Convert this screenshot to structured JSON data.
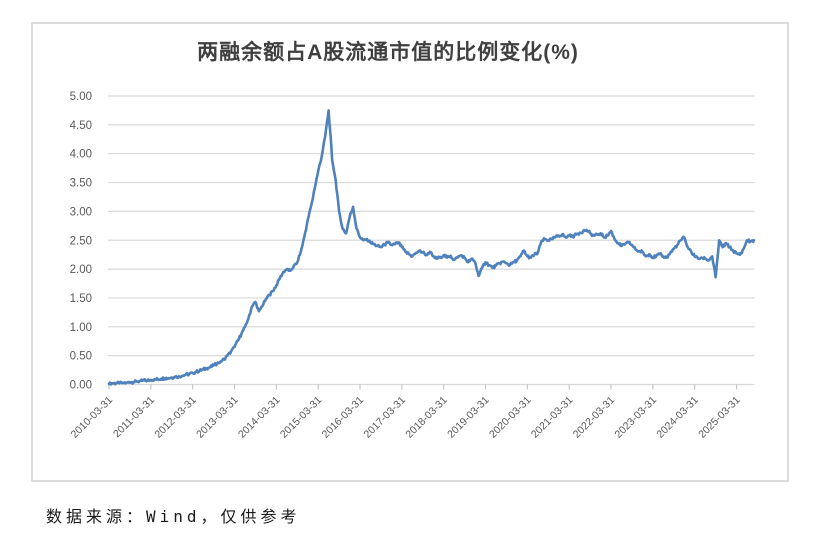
{
  "chart": {
    "title": "两融余额占A股流通市值的比例变化(%)",
    "caption": "数据来源：Wind，仅供参考"
  },
  "chart_data": {
    "type": "line",
    "title": "两融余额占A股流通市值的比例变化(%)",
    "xlabel": "",
    "ylabel": "",
    "ylim": [
      0,
      5
    ],
    "y_tick_step": 0.5,
    "y_tick_decimals": 2,
    "grid": "horizontal",
    "legend": "none",
    "x_tick_labels": [
      "2010-03-31",
      "2011-03-31",
      "2012-03-31",
      "2013-03-31",
      "2014-03-31",
      "2015-03-31",
      "2016-03-31",
      "2017-03-31",
      "2018-03-31",
      "2019-03-31",
      "2020-03-31",
      "2021-03-31",
      "2022-03-31",
      "2023-03-31",
      "2024-03-31",
      "2025-03-31"
    ],
    "series": [
      {
        "frequency": "monthly",
        "start": "2010-03",
        "end": "2025-08",
        "values": [
          0.01,
          0.02,
          0.02,
          0.02,
          0.03,
          0.03,
          0.04,
          0.04,
          0.05,
          0.06,
          0.07,
          0.07,
          0.08,
          0.09,
          0.09,
          0.1,
          0.11,
          0.11,
          0.12,
          0.13,
          0.14,
          0.15,
          0.17,
          0.18,
          0.2,
          0.22,
          0.24,
          0.26,
          0.28,
          0.3,
          0.33,
          0.36,
          0.4,
          0.44,
          0.5,
          0.57,
          0.65,
          0.76,
          0.88,
          1.0,
          1.15,
          1.35,
          1.43,
          1.27,
          1.36,
          1.48,
          1.55,
          1.62,
          1.72,
          1.84,
          1.95,
          2.0,
          1.97,
          2.05,
          2.12,
          2.3,
          2.55,
          2.85,
          3.1,
          3.4,
          3.7,
          3.95,
          4.3,
          4.75,
          3.9,
          3.55,
          3.0,
          2.7,
          2.62,
          2.9,
          3.08,
          2.7,
          2.55,
          2.5,
          2.52,
          2.46,
          2.43,
          2.4,
          2.38,
          2.42,
          2.46,
          2.42,
          2.43,
          2.46,
          2.38,
          2.3,
          2.26,
          2.22,
          2.28,
          2.32,
          2.29,
          2.25,
          2.3,
          2.22,
          2.18,
          2.21,
          2.24,
          2.2,
          2.23,
          2.16,
          2.2,
          2.24,
          2.2,
          2.12,
          2.18,
          2.12,
          1.88,
          2.02,
          2.12,
          2.07,
          2.02,
          2.06,
          2.1,
          2.13,
          2.1,
          2.07,
          2.12,
          2.15,
          2.22,
          2.32,
          2.22,
          2.2,
          2.25,
          2.28,
          2.48,
          2.52,
          2.5,
          2.52,
          2.55,
          2.58,
          2.6,
          2.55,
          2.58,
          2.56,
          2.6,
          2.63,
          2.66,
          2.68,
          2.62,
          2.58,
          2.6,
          2.62,
          2.55,
          2.58,
          2.66,
          2.52,
          2.45,
          2.4,
          2.43,
          2.46,
          2.42,
          2.34,
          2.31,
          2.3,
          2.22,
          2.26,
          2.2,
          2.23,
          2.26,
          2.22,
          2.2,
          2.28,
          2.35,
          2.42,
          2.5,
          2.55,
          2.38,
          2.3,
          2.22,
          2.18,
          2.2,
          2.18,
          2.15,
          2.22,
          1.86,
          2.5,
          2.38,
          2.45,
          2.38,
          2.32,
          2.27,
          2.25,
          2.35,
          2.5,
          2.48,
          2.5
        ]
      }
    ],
    "colors": {
      "line": "#4F81BD",
      "grid": "#D9D9D9",
      "tick": "#C6C6C6",
      "axis_labels": "#595959",
      "title": "#3F3F3F"
    }
  }
}
